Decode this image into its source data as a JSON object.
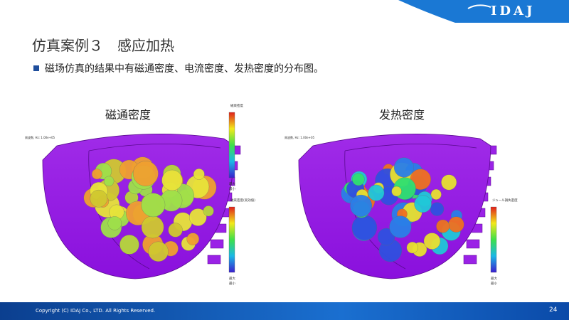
{
  "header": {
    "title": "仿真案例３　感应加热",
    "logo": "IDAJ"
  },
  "bullet": "磁场仿真的结果中有磁通密度、电流密度、发热密度的分布图。",
  "figures": [
    {
      "caption": "磁通密度",
      "frequency": "周波数, Hz: 1.00e+05",
      "legends": [
        {
          "title": "磁束密度",
          "max": "最大",
          "min": "最小"
        },
        {
          "title": "磁束密度(実効値)",
          "max": "最大",
          "min": "最小"
        }
      ]
    },
    {
      "caption": "发热密度",
      "frequency": "周波数, Hz: 1.00e+05",
      "legends": [
        {
          "title": "ジュール損失密度",
          "max": "最大",
          "min": "最小"
        }
      ]
    }
  ],
  "footer": {
    "copyright": "Copyright (C) IDAJ Co., LTD. All Rights Reserved.",
    "page": "24"
  }
}
